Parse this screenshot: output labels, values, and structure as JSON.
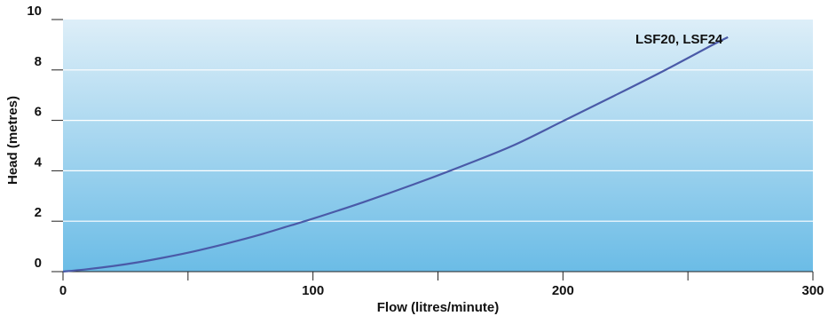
{
  "chart_data": {
    "type": "line",
    "xlabel": "Flow (litres/minute)",
    "ylabel": "Head (metres)",
    "xlim": [
      0,
      300
    ],
    "ylim": [
      0,
      10
    ],
    "x_ticks": [
      0,
      100,
      200,
      300
    ],
    "x_minor_ticks": [
      50,
      150,
      250
    ],
    "y_ticks": [
      0,
      2,
      4,
      6,
      8,
      10
    ],
    "grid": "horizontal",
    "background": "gradient",
    "colors": {
      "line": "#4a5aa8",
      "gradient_top": "#ddeef8",
      "gradient_bottom": "#6bbce6",
      "gridline": "#ffffff",
      "axis": "#222222"
    },
    "series": [
      {
        "name": "LSF20, LSF24",
        "x": [
          0,
          10,
          20,
          30,
          40,
          50,
          60,
          70,
          80,
          90,
          100,
          120,
          140,
          160,
          180,
          200,
          220,
          240,
          260,
          266
        ],
        "y": [
          0,
          0.1,
          0.22,
          0.37,
          0.55,
          0.75,
          0.98,
          1.23,
          1.5,
          1.8,
          2.1,
          2.75,
          3.45,
          4.2,
          5.0,
          5.97,
          6.95,
          7.95,
          9.0,
          9.3
        ]
      }
    ]
  }
}
